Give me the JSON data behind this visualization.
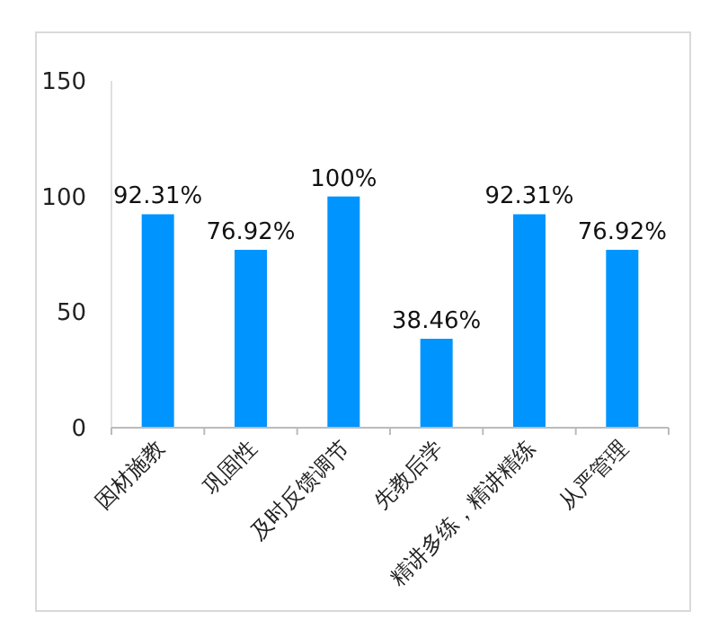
{
  "chart_data": {
    "type": "bar",
    "categories": [
      "因材施教",
      "巩固性",
      "及时反馈调节",
      "先教后学",
      "精讲多练，精讲精练",
      "从严管理"
    ],
    "values": [
      92.31,
      76.92,
      100,
      38.46,
      92.31,
      76.92
    ],
    "value_labels": [
      "92.31%",
      "76.92%",
      "100%",
      "38.46%",
      "92.31%",
      "76.92%"
    ],
    "color": "#0094ff",
    "ylim": [
      0,
      150
    ],
    "yticks": [
      0,
      50,
      100,
      150
    ],
    "grid": false
  }
}
